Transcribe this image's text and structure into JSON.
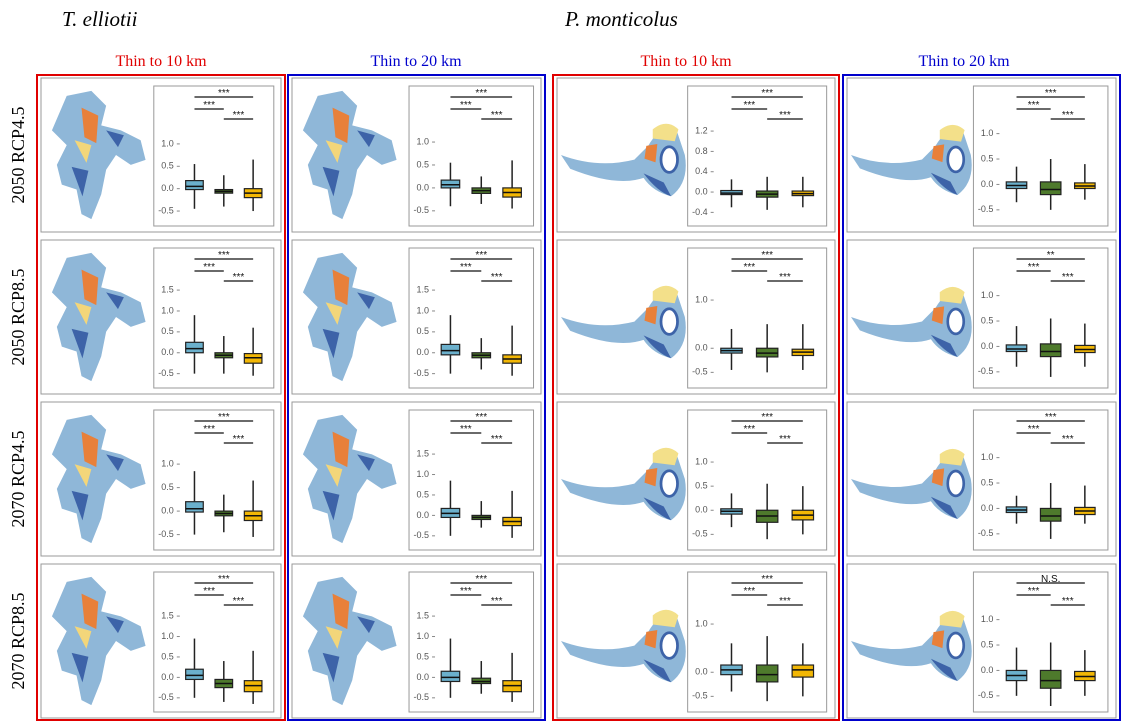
{
  "species": [
    "T. elliotii",
    "P. monticolus"
  ],
  "column_headers": [
    "Thin to 10 km",
    "Thin to 20 km",
    "Thin to 10 km",
    "Thin to 20 km"
  ],
  "row_labels": [
    "2050 RCP4.5",
    "2050 RCP8.5",
    "2070 RCP4.5",
    "2070 RCP8.5"
  ],
  "chart_data": [
    {
      "type": "box",
      "ylim": [
        -0.7,
        1.4
      ],
      "yticks": [
        {
          "value": 1,
          "label": "1.0"
        },
        {
          "value": 0.5,
          "label": "0.5"
        },
        {
          "value": 0,
          "label": "0.0"
        },
        {
          "value": -0.5,
          "label": "-0.5"
        }
      ],
      "series": [
        {
          "color": "#6bb0cc",
          "values": [
            -0.45,
            -0.02,
            0.05,
            0.18,
            0.55
          ]
        },
        {
          "color": "#4e7a2c",
          "values": [
            -0.4,
            -0.1,
            -0.06,
            -0.02,
            0.3
          ]
        },
        {
          "color": "#f2b705",
          "values": [
            -0.5,
            -0.2,
            -0.1,
            0.0,
            0.65
          ]
        }
      ],
      "significance": [
        "***",
        "***",
        "***"
      ]
    },
    {
      "type": "box",
      "ylim": [
        -0.7,
        1.55
      ],
      "yticks": [
        {
          "value": 1.5,
          "label": "1.5"
        },
        {
          "value": 1,
          "label": "1.0"
        },
        {
          "value": 0.5,
          "label": "0.5"
        },
        {
          "value": 0,
          "label": "0.0"
        },
        {
          "value": -0.5,
          "label": "-0.5"
        }
      ],
      "series": [
        {
          "color": "#6bb0cc",
          "values": [
            -0.5,
            0.0,
            0.1,
            0.25,
            0.9
          ]
        },
        {
          "color": "#4e7a2c",
          "values": [
            -0.5,
            -0.12,
            -0.06,
            0.0,
            0.4
          ]
        },
        {
          "color": "#f2b705",
          "values": [
            -0.55,
            -0.25,
            -0.12,
            -0.02,
            0.6
          ]
        }
      ],
      "significance": [
        "***",
        "***",
        "***"
      ]
    },
    {
      "type": "box",
      "ylim": [
        -0.7,
        1.3
      ],
      "yticks": [
        {
          "value": 1,
          "label": "1.0"
        },
        {
          "value": 0.5,
          "label": "0.5"
        },
        {
          "value": 0,
          "label": "0.0"
        },
        {
          "value": -0.5,
          "label": "-0.5"
        }
      ],
      "series": [
        {
          "color": "#6bb0cc",
          "values": [
            -0.5,
            -0.02,
            0.05,
            0.2,
            0.85
          ]
        },
        {
          "color": "#4e7a2c",
          "values": [
            -0.45,
            -0.1,
            -0.05,
            0.0,
            0.35
          ]
        },
        {
          "color": "#f2b705",
          "values": [
            -0.55,
            -0.2,
            -0.1,
            0.0,
            0.65
          ]
        }
      ],
      "significance": [
        "***",
        "***",
        "***"
      ]
    },
    {
      "type": "box",
      "ylim": [
        -0.7,
        1.6
      ],
      "yticks": [
        {
          "value": 1.5,
          "label": "1.5"
        },
        {
          "value": 1,
          "label": "1.0"
        },
        {
          "value": 0.5,
          "label": "0.5"
        },
        {
          "value": 0,
          "label": "0.0"
        },
        {
          "value": -0.5,
          "label": "-0.5"
        }
      ],
      "series": [
        {
          "color": "#6bb0cc",
          "values": [
            -0.5,
            -0.05,
            0.05,
            0.2,
            0.95
          ]
        },
        {
          "color": "#4e7a2c",
          "values": [
            -0.6,
            -0.25,
            -0.15,
            -0.05,
            0.4
          ]
        },
        {
          "color": "#f2b705",
          "values": [
            -0.65,
            -0.35,
            -0.2,
            -0.08,
            0.65
          ]
        }
      ],
      "significance": [
        "***",
        "***",
        "***"
      ]
    },
    {
      "type": "box",
      "ylim": [
        -0.7,
        1.35
      ],
      "yticks": [
        {
          "value": 1,
          "label": "1.0"
        },
        {
          "value": 0.5,
          "label": "0.5"
        },
        {
          "value": 0,
          "label": "0.0"
        },
        {
          "value": -0.5,
          "label": "-0.5"
        }
      ],
      "series": [
        {
          "color": "#6bb0cc",
          "values": [
            -0.4,
            0.0,
            0.07,
            0.17,
            0.55
          ]
        },
        {
          "color": "#4e7a2c",
          "values": [
            -0.35,
            -0.12,
            -0.06,
            0.0,
            0.25
          ]
        },
        {
          "color": "#f2b705",
          "values": [
            -0.45,
            -0.2,
            -0.1,
            0.0,
            0.6
          ]
        }
      ],
      "significance": [
        "***",
        "***",
        "***"
      ]
    },
    {
      "type": "box",
      "ylim": [
        -0.7,
        1.55
      ],
      "yticks": [
        {
          "value": 1.5,
          "label": "1.5"
        },
        {
          "value": 1,
          "label": "1.0"
        },
        {
          "value": 0.5,
          "label": "0.5"
        },
        {
          "value": 0,
          "label": "0.0"
        },
        {
          "value": -0.5,
          "label": "-0.5"
        }
      ],
      "series": [
        {
          "color": "#6bb0cc",
          "values": [
            -0.5,
            -0.05,
            0.05,
            0.2,
            0.9
          ]
        },
        {
          "color": "#4e7a2c",
          "values": [
            -0.4,
            -0.12,
            -0.06,
            0.0,
            0.35
          ]
        },
        {
          "color": "#f2b705",
          "values": [
            -0.55,
            -0.25,
            -0.15,
            -0.05,
            0.65
          ]
        }
      ],
      "significance": [
        "***",
        "***",
        "***"
      ]
    },
    {
      "type": "box",
      "ylim": [
        -0.7,
        1.6
      ],
      "yticks": [
        {
          "value": 1.5,
          "label": "1.5"
        },
        {
          "value": 1,
          "label": "1.0"
        },
        {
          "value": 0.5,
          "label": "0.5"
        },
        {
          "value": 0,
          "label": "0.0"
        },
        {
          "value": -0.5,
          "label": "-0.5"
        }
      ],
      "series": [
        {
          "color": "#6bb0cc",
          "values": [
            -0.5,
            -0.05,
            0.05,
            0.17,
            0.85
          ]
        },
        {
          "color": "#4e7a2c",
          "values": [
            -0.3,
            -0.1,
            -0.05,
            0.0,
            0.35
          ]
        },
        {
          "color": "#f2b705",
          "values": [
            -0.55,
            -0.25,
            -0.15,
            -0.05,
            0.6
          ]
        }
      ],
      "significance": [
        "***",
        "***",
        "***"
      ]
    },
    {
      "type": "box",
      "ylim": [
        -0.7,
        1.6
      ],
      "yticks": [
        {
          "value": 1.5,
          "label": "1.5"
        },
        {
          "value": 1,
          "label": "1.0"
        },
        {
          "value": 0.5,
          "label": "0.5"
        },
        {
          "value": 0,
          "label": "0.0"
        },
        {
          "value": -0.5,
          "label": "-0.5"
        }
      ],
      "series": [
        {
          "color": "#6bb0cc",
          "values": [
            -0.5,
            -0.1,
            0.0,
            0.15,
            0.95
          ]
        },
        {
          "color": "#4e7a2c",
          "values": [
            -0.4,
            -0.15,
            -0.1,
            -0.02,
            0.4
          ]
        },
        {
          "color": "#f2b705",
          "values": [
            -0.6,
            -0.35,
            -0.2,
            -0.08,
            0.6
          ]
        }
      ],
      "significance": [
        "***",
        "***",
        "***"
      ]
    },
    {
      "type": "box",
      "ylim": [
        -0.55,
        1.3
      ],
      "yticks": [
        {
          "value": 1.2,
          "label": "1.2"
        },
        {
          "value": 0.8,
          "label": "0.8"
        },
        {
          "value": 0.4,
          "label": "0.4"
        },
        {
          "value": 0,
          "label": "0.0"
        },
        {
          "value": -0.4,
          "label": "-0.4"
        }
      ],
      "series": [
        {
          "color": "#6bb0cc",
          "values": [
            -0.3,
            -0.05,
            -0.02,
            0.03,
            0.25
          ]
        },
        {
          "color": "#4e7a2c",
          "values": [
            -0.35,
            -0.1,
            -0.04,
            0.02,
            0.3
          ]
        },
        {
          "color": "#f2b705",
          "values": [
            -0.3,
            -0.07,
            -0.03,
            0.02,
            0.3
          ]
        }
      ],
      "significance": [
        "***",
        "***",
        "***"
      ]
    },
    {
      "type": "box",
      "ylim": [
        -0.7,
        1.25
      ],
      "yticks": [
        {
          "value": 1,
          "label": "1.0"
        },
        {
          "value": 0,
          "label": "0.0"
        },
        {
          "value": -0.5,
          "label": "-0.5"
        }
      ],
      "series": [
        {
          "color": "#6bb0cc",
          "values": [
            -0.45,
            -0.1,
            -0.05,
            0.0,
            0.4
          ]
        },
        {
          "color": "#4e7a2c",
          "values": [
            -0.5,
            -0.18,
            -0.1,
            0.0,
            0.5
          ]
        },
        {
          "color": "#f2b705",
          "values": [
            -0.45,
            -0.15,
            -0.08,
            -0.02,
            0.5
          ]
        }
      ],
      "significance": [
        "***",
        "***",
        "***"
      ]
    },
    {
      "type": "box",
      "ylim": [
        -0.7,
        1.25
      ],
      "yticks": [
        {
          "value": 1,
          "label": "1.0"
        },
        {
          "value": 0.5,
          "label": "0.5"
        },
        {
          "value": 0,
          "label": "0.0"
        },
        {
          "value": -0.5,
          "label": "-0.5"
        }
      ],
      "series": [
        {
          "color": "#6bb0cc",
          "values": [
            -0.35,
            -0.08,
            -0.02,
            0.03,
            0.35
          ]
        },
        {
          "color": "#4e7a2c",
          "values": [
            -0.6,
            -0.25,
            -0.12,
            0.0,
            0.55
          ]
        },
        {
          "color": "#f2b705",
          "values": [
            -0.5,
            -0.2,
            -0.1,
            0.0,
            0.5
          ]
        }
      ],
      "significance": [
        "***",
        "***",
        "***"
      ]
    },
    {
      "type": "box",
      "ylim": [
        -0.7,
        1.25
      ],
      "yticks": [
        {
          "value": 1,
          "label": "1.0"
        },
        {
          "value": 0,
          "label": "0.0"
        },
        {
          "value": -0.5,
          "label": "-0.5"
        }
      ],
      "series": [
        {
          "color": "#6bb0cc",
          "values": [
            -0.4,
            -0.05,
            0.05,
            0.15,
            0.6
          ]
        },
        {
          "color": "#4e7a2c",
          "values": [
            -0.6,
            -0.2,
            -0.05,
            0.15,
            0.75
          ]
        },
        {
          "color": "#f2b705",
          "values": [
            -0.5,
            -0.1,
            0.05,
            0.15,
            0.6
          ]
        }
      ],
      "significance": [
        "***",
        "***",
        "***"
      ]
    },
    {
      "type": "box",
      "ylim": [
        -0.7,
        1.15
      ],
      "yticks": [
        {
          "value": 1,
          "label": "1.0"
        },
        {
          "value": 0.5,
          "label": "0.5"
        },
        {
          "value": 0,
          "label": "0.0"
        },
        {
          "value": -0.5,
          "label": "-0.5"
        }
      ],
      "series": [
        {
          "color": "#6bb0cc",
          "values": [
            -0.35,
            -0.08,
            -0.02,
            0.05,
            0.35
          ]
        },
        {
          "color": "#4e7a2c",
          "values": [
            -0.5,
            -0.2,
            -0.1,
            0.05,
            0.5
          ]
        },
        {
          "color": "#f2b705",
          "values": [
            -0.3,
            -0.08,
            -0.03,
            0.03,
            0.4
          ]
        }
      ],
      "significance": [
        "***",
        "***",
        "***"
      ]
    },
    {
      "type": "box",
      "ylim": [
        -0.7,
        1.15
      ],
      "yticks": [
        {
          "value": 1,
          "label": "1.0"
        },
        {
          "value": 0.5,
          "label": "0.5"
        },
        {
          "value": 0,
          "label": "0.0"
        },
        {
          "value": -0.5,
          "label": "-0.5"
        }
      ],
      "series": [
        {
          "color": "#6bb0cc",
          "values": [
            -0.4,
            -0.1,
            -0.05,
            0.03,
            0.4
          ]
        },
        {
          "color": "#4e7a2c",
          "values": [
            -0.6,
            -0.2,
            -0.1,
            0.05,
            0.55
          ]
        },
        {
          "color": "#f2b705",
          "values": [
            -0.4,
            -0.12,
            -0.06,
            0.02,
            0.45
          ]
        }
      ],
      "significance": [
        "**",
        "***",
        "***"
      ]
    },
    {
      "type": "box",
      "ylim": [
        -0.7,
        1.15
      ],
      "yticks": [
        {
          "value": 1,
          "label": "1.0"
        },
        {
          "value": 0.5,
          "label": "0.5"
        },
        {
          "value": 0,
          "label": "0.0"
        },
        {
          "value": -0.5,
          "label": "-0.5"
        }
      ],
      "series": [
        {
          "color": "#6bb0cc",
          "values": [
            -0.3,
            -0.08,
            -0.03,
            0.03,
            0.25
          ]
        },
        {
          "color": "#4e7a2c",
          "values": [
            -0.6,
            -0.25,
            -0.15,
            0.0,
            0.5
          ]
        },
        {
          "color": "#f2b705",
          "values": [
            -0.3,
            -0.12,
            -0.05,
            0.02,
            0.45
          ]
        }
      ],
      "significance": [
        "***",
        "***",
        "***"
      ]
    },
    {
      "type": "box",
      "ylim": [
        -0.7,
        1.15
      ],
      "yticks": [
        {
          "value": 1,
          "label": "1.0"
        },
        {
          "value": 0.5,
          "label": "0.5"
        },
        {
          "value": 0,
          "label": "0.0"
        },
        {
          "value": -0.5,
          "label": "-0.5"
        }
      ],
      "series": [
        {
          "color": "#6bb0cc",
          "values": [
            -0.5,
            -0.2,
            -0.1,
            0.0,
            0.45
          ]
        },
        {
          "color": "#4e7a2c",
          "values": [
            -0.7,
            -0.35,
            -0.2,
            0.0,
            0.55
          ]
        },
        {
          "color": "#f2b705",
          "values": [
            -0.5,
            -0.2,
            -0.12,
            -0.02,
            0.4
          ]
        }
      ],
      "significance": [
        "N.S.",
        "***",
        "***"
      ]
    }
  ]
}
